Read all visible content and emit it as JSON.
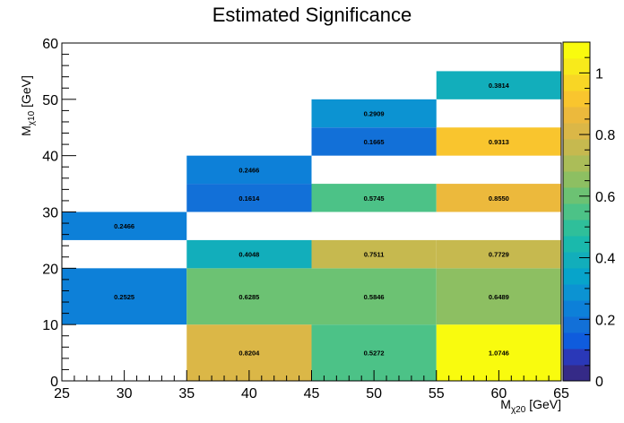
{
  "chart_data": {
    "type": "heatmap",
    "title": "Estimated Significance",
    "xlabel": {
      "main": "M",
      "sub": "χ20",
      "unit": " [GeV]"
    },
    "ylabel": {
      "main": "M",
      "sub": "χ10",
      "unit": " [GeV]"
    },
    "xlim": [
      25,
      65
    ],
    "ylim": [
      0,
      60
    ],
    "zlim": [
      0,
      1.1
    ],
    "x_ticks": [
      "25",
      "30",
      "35",
      "40",
      "45",
      "50",
      "55",
      "60",
      "65"
    ],
    "y_ticks": [
      "0",
      "10",
      "20",
      "30",
      "40",
      "50",
      "60"
    ],
    "z_ticks": [
      "0",
      "0.2",
      "0.4",
      "0.6",
      "0.8",
      "1"
    ],
    "cells": [
      {
        "x": [
          25,
          35
        ],
        "y": [
          10,
          20
        ],
        "value": 0.2525,
        "label": "0.2525"
      },
      {
        "x": [
          25,
          35
        ],
        "y": [
          25,
          30
        ],
        "value": 0.2466,
        "label": "0.2466"
      },
      {
        "x": [
          35,
          45
        ],
        "y": [
          0,
          10
        ],
        "value": 0.8204,
        "label": "0.8204"
      },
      {
        "x": [
          35,
          45
        ],
        "y": [
          10,
          20
        ],
        "value": 0.6285,
        "label": "0.6285"
      },
      {
        "x": [
          35,
          45
        ],
        "y": [
          20,
          25
        ],
        "value": 0.4048,
        "label": "0.4048"
      },
      {
        "x": [
          35,
          45
        ],
        "y": [
          30,
          35
        ],
        "value": 0.1614,
        "label": "0.1614"
      },
      {
        "x": [
          35,
          45
        ],
        "y": [
          35,
          40
        ],
        "value": 0.2466,
        "label": "0.2466"
      },
      {
        "x": [
          45,
          55
        ],
        "y": [
          0,
          10
        ],
        "value": 0.5272,
        "label": "0.5272"
      },
      {
        "x": [
          45,
          55
        ],
        "y": [
          10,
          20
        ],
        "value": 0.5846,
        "label": "0.5846"
      },
      {
        "x": [
          45,
          55
        ],
        "y": [
          20,
          25
        ],
        "value": 0.7511,
        "label": "0.7511"
      },
      {
        "x": [
          45,
          55
        ],
        "y": [
          30,
          35
        ],
        "value": 0.5745,
        "label": "0.5745"
      },
      {
        "x": [
          45,
          55
        ],
        "y": [
          40,
          45
        ],
        "value": 0.1665,
        "label": "0.1665"
      },
      {
        "x": [
          45,
          55
        ],
        "y": [
          45,
          50
        ],
        "value": 0.2909,
        "label": "0.2909"
      },
      {
        "x": [
          55,
          65
        ],
        "y": [
          0,
          10
        ],
        "value": 1.0746,
        "label": "1.0746"
      },
      {
        "x": [
          55,
          65
        ],
        "y": [
          10,
          20
        ],
        "value": 0.6489,
        "label": "0.6489"
      },
      {
        "x": [
          55,
          65
        ],
        "y": [
          20,
          25
        ],
        "value": 0.7729,
        "label": "0.7729"
      },
      {
        "x": [
          55,
          65
        ],
        "y": [
          30,
          35
        ],
        "value": 0.855,
        "label": "0.8550"
      },
      {
        "x": [
          55,
          65
        ],
        "y": [
          40,
          45
        ],
        "value": 0.9313,
        "label": "0.9313"
      },
      {
        "x": [
          55,
          65
        ],
        "y": [
          50,
          55
        ],
        "value": 0.3814,
        "label": "0.3814"
      }
    ],
    "palette": [
      "#352a87",
      "#2a38b8",
      "#0f5cdd",
      "#1270d8",
      "#0d80d8",
      "#0c93d2",
      "#07a4ca",
      "#12aebb",
      "#1ab9ac",
      "#2fbf9a",
      "#4cc287",
      "#6cc273",
      "#8dbf62",
      "#abbd58",
      "#c6b94f",
      "#dbb747",
      "#ecb93c",
      "#f9c52e",
      "#f8d625",
      "#f8ea1b",
      "#f9fb0e"
    ]
  }
}
